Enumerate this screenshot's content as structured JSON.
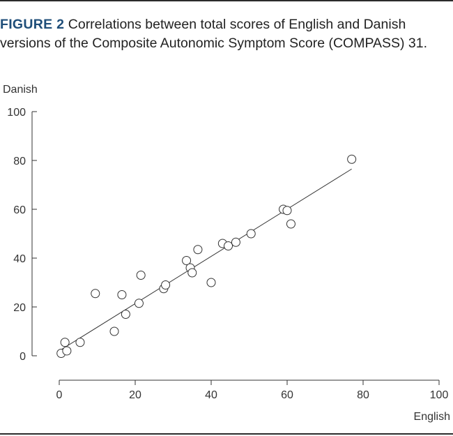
{
  "caption": {
    "label": "FIGURE 2",
    "text": "Correlations between total scores of English and Danish versions of the Composite Autonomic Symptom Score (COMPASS) 31."
  },
  "chart_data": {
    "type": "scatter",
    "xlabel": "English",
    "ylabel": "Danish",
    "xlim": [
      0,
      100
    ],
    "ylim": [
      0,
      100
    ],
    "xticks": [
      "0",
      "20",
      "40",
      "60",
      "80",
      "100"
    ],
    "yticks": [
      "0",
      "20",
      "40",
      "60",
      "80",
      "100"
    ],
    "grid": false,
    "points": [
      {
        "x": 0.5,
        "y": 1
      },
      {
        "x": 1.5,
        "y": 5.5
      },
      {
        "x": 2,
        "y": 2
      },
      {
        "x": 5.5,
        "y": 5.5
      },
      {
        "x": 9.5,
        "y": 25.5
      },
      {
        "x": 14.5,
        "y": 10
      },
      {
        "x": 16.5,
        "y": 25
      },
      {
        "x": 17.5,
        "y": 17
      },
      {
        "x": 21,
        "y": 21.5
      },
      {
        "x": 21.5,
        "y": 33
      },
      {
        "x": 27.5,
        "y": 27.5
      },
      {
        "x": 28,
        "y": 29
      },
      {
        "x": 33.5,
        "y": 39
      },
      {
        "x": 34.5,
        "y": 36
      },
      {
        "x": 35,
        "y": 34
      },
      {
        "x": 36.5,
        "y": 43.5
      },
      {
        "x": 40,
        "y": 30
      },
      {
        "x": 43,
        "y": 46
      },
      {
        "x": 44.5,
        "y": 45
      },
      {
        "x": 46.5,
        "y": 46.5
      },
      {
        "x": 50.5,
        "y": 50
      },
      {
        "x": 59,
        "y": 60
      },
      {
        "x": 60,
        "y": 59.5
      },
      {
        "x": 61,
        "y": 54
      },
      {
        "x": 77,
        "y": 80.5
      }
    ],
    "trendline": {
      "x": [
        0.5,
        77
      ],
      "y": [
        2.5,
        76.5
      ]
    }
  }
}
